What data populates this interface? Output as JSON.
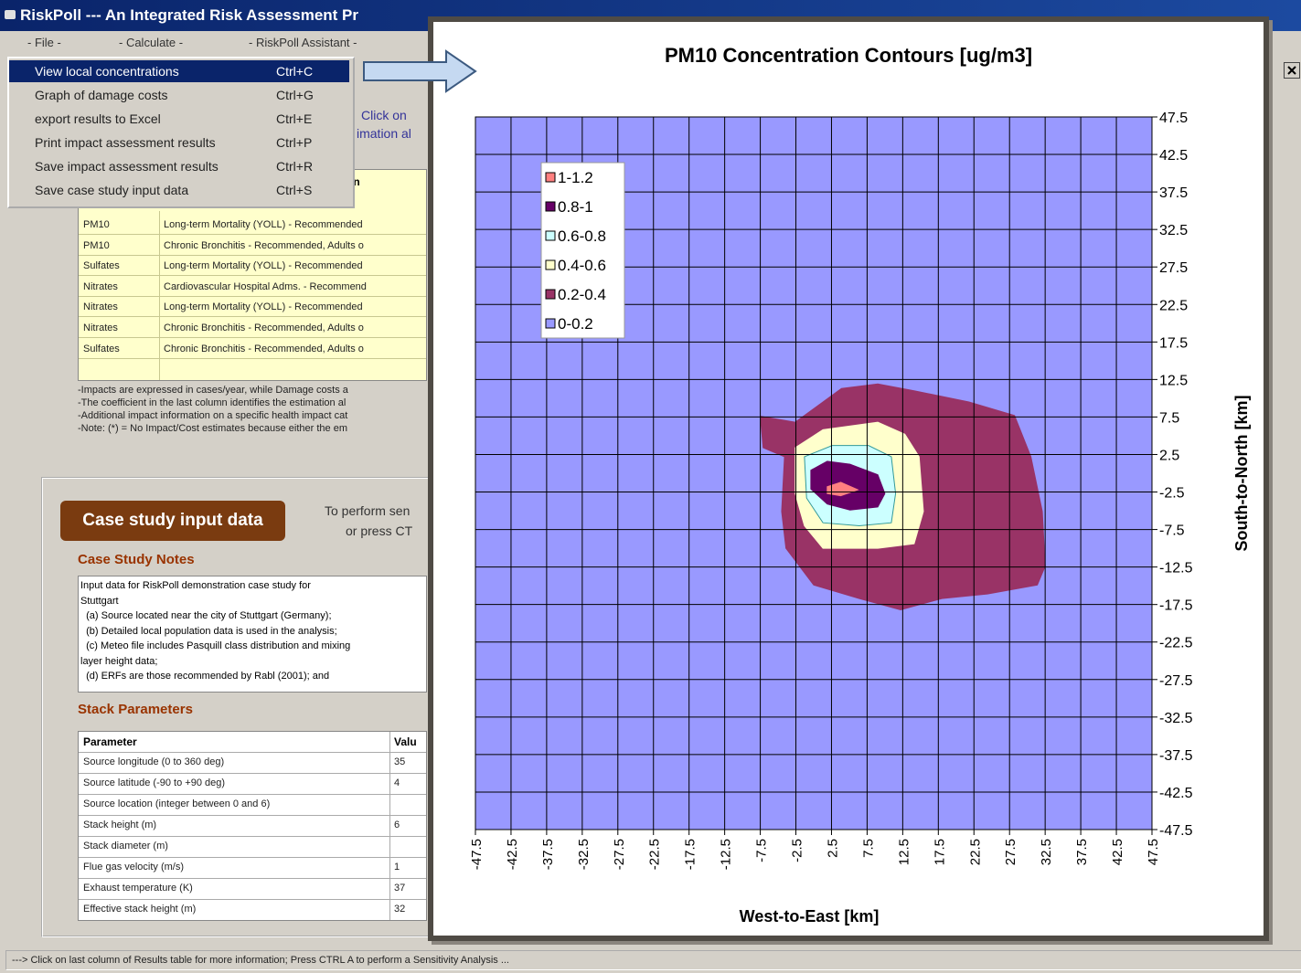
{
  "window": {
    "title": "RiskPoll --- An Integrated Risk Assessment Pr"
  },
  "menu": [
    "- File -",
    "- Calculate -",
    "- RiskPoll Assistant -"
  ],
  "file_menu": [
    {
      "label": "View local concentrations",
      "shortcut": "Ctrl+C"
    },
    {
      "label": "Graph of damage costs",
      "shortcut": "Ctrl+G"
    },
    {
      "label": "export results to Excel",
      "shortcut": "Ctrl+E"
    },
    {
      "label": "Print impact assessment results",
      "shortcut": "Ctrl+P"
    },
    {
      "label": "Save impact assessment results",
      "shortcut": "Ctrl+R"
    },
    {
      "label": "Save case study input data",
      "shortcut": "Ctrl+S"
    }
  ],
  "hint": [
    "Click on",
    "imation al"
  ],
  "results": {
    "header": "on",
    "rows": [
      [
        "PM10",
        "Long-term Mortality (YOLL) - Recommended"
      ],
      [
        "PM10",
        "Chronic Bronchitis - Recommended, Adults o"
      ],
      [
        "Sulfates",
        "Long-term Mortality (YOLL) - Recommended"
      ],
      [
        "Nitrates",
        "Cardiovascular Hospital Adms. - Recommend"
      ],
      [
        "Nitrates",
        "Long-term Mortality (YOLL) - Recommended"
      ],
      [
        "Nitrates",
        "Chronic Bronchitis - Recommended, Adults o"
      ],
      [
        "Sulfates",
        "Chronic Bronchitis - Recommended, Adults o"
      ]
    ],
    "notes": [
      "-Impacts are expressed in cases/year, while Damage costs a",
      "-The coefficient in the last column identifies the estimation al",
      "-Additional impact information on a specific health impact cat",
      "-Note: (*) = No Impact/Cost estimates because either the em"
    ]
  },
  "case_study": {
    "button": "Case study input data",
    "instruction": [
      "To perform sen",
      "or press CT"
    ],
    "notes_heading": "Case Study Notes",
    "notes": [
      "Input data for RiskPoll demonstration case study for",
      "Stuttgart",
      "  (a) Source located near the city of Stuttgart (Germany);",
      "  (b) Detailed local population data is used in the analysis;",
      "  (c) Meteo file includes Pasquill class distribution and mixing",
      "layer height data;",
      "  (d) ERFs are those recommended by Rabl (2001); and"
    ],
    "stack_heading": "Stack Parameters",
    "stack_header": [
      "Parameter",
      "Valu"
    ],
    "stack_rows": [
      [
        "Source longitude (0 to 360 deg)",
        "35"
      ],
      [
        "Source latitude (-90 to +90 deg)",
        "4"
      ],
      [
        "Source location (integer between 0 and 6)"
      ],
      [
        "Stack height (m)",
        "6"
      ],
      [
        "Stack diameter (m)"
      ],
      [
        "Flue gas velocity (m/s)",
        "1"
      ],
      [
        "Exhaust temperature (K)",
        "37"
      ],
      [
        "Effective stack height (m)",
        "32"
      ]
    ]
  },
  "status": "---> Click on last column of Results table for more information; Press CTRL A to perform a Sensitivity Analysis ...",
  "chart_data": {
    "type": "contour",
    "title": "PM10 Concentration Contours [ug/m3]",
    "x_label": "West-to-East [km]",
    "y_label": "South-to-North [km]",
    "xlim": [
      -47.5,
      47.5
    ],
    "ylim": [
      -47.5,
      47.5
    ],
    "xticks": [
      -47.5,
      -42.5,
      -37.5,
      -32.5,
      -27.5,
      -22.5,
      -17.5,
      -12.5,
      -7.5,
      -2.5,
      2.5,
      7.5,
      12.5,
      17.5,
      22.5,
      27.5,
      32.5,
      37.5,
      42.5,
      47.5
    ],
    "yticks": [
      47.5,
      42.5,
      37.5,
      32.5,
      27.5,
      22.5,
      17.5,
      12.5,
      7.5,
      2.5,
      -2.5,
      -7.5,
      -12.5,
      -17.5,
      -22.5,
      -27.5,
      -32.5,
      -37.5,
      -42.5,
      -47.5
    ],
    "grid": true,
    "legend": "upper left",
    "series": [
      {
        "name": "1-1.2",
        "color": "#ff8080",
        "x": [
          1.9,
          3.8,
          6.2,
          3.8,
          1.9
        ],
        "y": [
          -1.8,
          -1.2,
          -2.2,
          -3,
          -2.7
        ]
      },
      {
        "name": "0.8-1",
        "color": "#660066",
        "x": [
          -0.4,
          1.9,
          5.1,
          9,
          10,
          9,
          5.1,
          1.9,
          -0.4
        ],
        "y": [
          0.4,
          1.6,
          1.2,
          -0.2,
          -2.7,
          -4.5,
          -4.9,
          -4.1,
          -2.1
        ]
      },
      {
        "name": "0.6-0.8",
        "color": "#ccffff",
        "x": [
          -1.3,
          2.6,
          7.7,
          10.9,
          11.5,
          10.9,
          6.4,
          1.3,
          -1
        ],
        "y": [
          2.2,
          3.7,
          3.7,
          2.2,
          -2.7,
          -6.6,
          -7,
          -6.6,
          -3.3
        ]
      },
      {
        "name": "0.4-0.6",
        "color": "#ffffcc",
        "x": [
          -2.6,
          1.3,
          9,
          12.8,
          14.8,
          15.4,
          14.1,
          9,
          1.3,
          -1.3,
          -2.6
        ],
        "y": [
          3.4,
          5.8,
          6.8,
          5.2,
          2.2,
          -5.1,
          -9.4,
          -10,
          -10,
          -7,
          -2.7
        ]
      },
      {
        "name": "0.2-0.4",
        "color": "#993366",
        "x": [
          -7.5,
          -2.6,
          3.9,
          9,
          14.1,
          21.8,
          28.2,
          30.5,
          32.1,
          32.5,
          31.4,
          24.4,
          18,
          12.2,
          6.4,
          0,
          -3.9,
          -4.5,
          -4.1,
          -7.1
        ],
        "y": [
          7.6,
          6.8,
          11.3,
          11.9,
          11,
          9.5,
          7.7,
          2.2,
          -5.1,
          -12.4,
          -14.9,
          -16.1,
          -16.7,
          -18.2,
          -16.7,
          -14.9,
          -10,
          -5.1,
          2.2,
          3.4
        ]
      },
      {
        "name": "0-0.2",
        "color": "#9999ff",
        "x": [
          -47.5,
          47.5,
          47.5,
          -47.5
        ],
        "y": [
          47.5,
          47.5,
          -47.5,
          -47.5
        ]
      }
    ]
  }
}
